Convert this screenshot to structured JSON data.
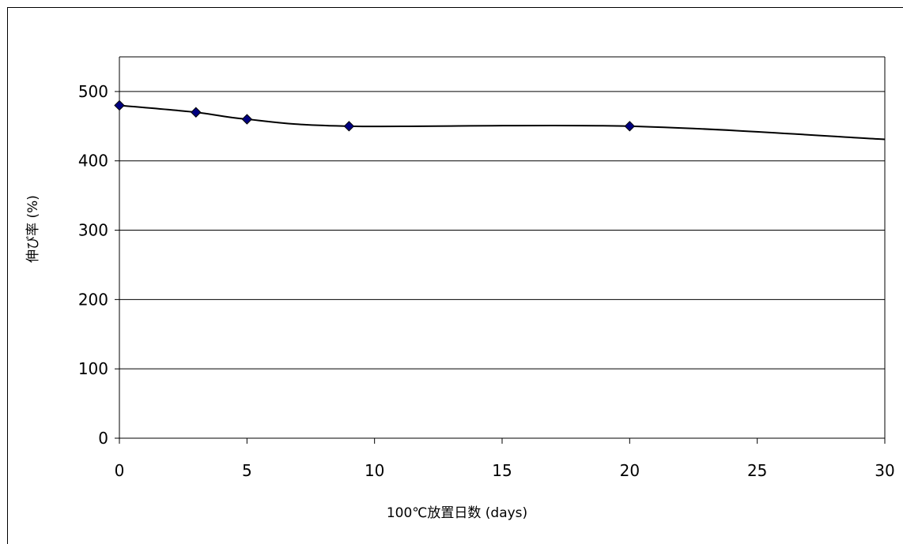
{
  "chart_data": {
    "type": "line",
    "title": "",
    "xlabel": "100℃放置日数 (days)",
    "ylabel": "伸び率 (%)",
    "xlim": [
      0,
      30
    ],
    "ylim": [
      0,
      550
    ],
    "x_ticks": [
      0,
      5,
      10,
      15,
      20,
      25,
      30
    ],
    "y_ticks": [
      0,
      100,
      200,
      300,
      400,
      500
    ],
    "grid": "horizontal",
    "legend": "none",
    "series": [
      {
        "x": [
          0,
          3,
          5,
          9,
          20
        ],
        "y": [
          480,
          470,
          460,
          450,
          450
        ],
        "marker": "diamond",
        "marker_color": "#000080",
        "line_color": "#000000",
        "smoothed": true
      }
    ],
    "trend_end": {
      "x": 30,
      "y": 431
    }
  }
}
